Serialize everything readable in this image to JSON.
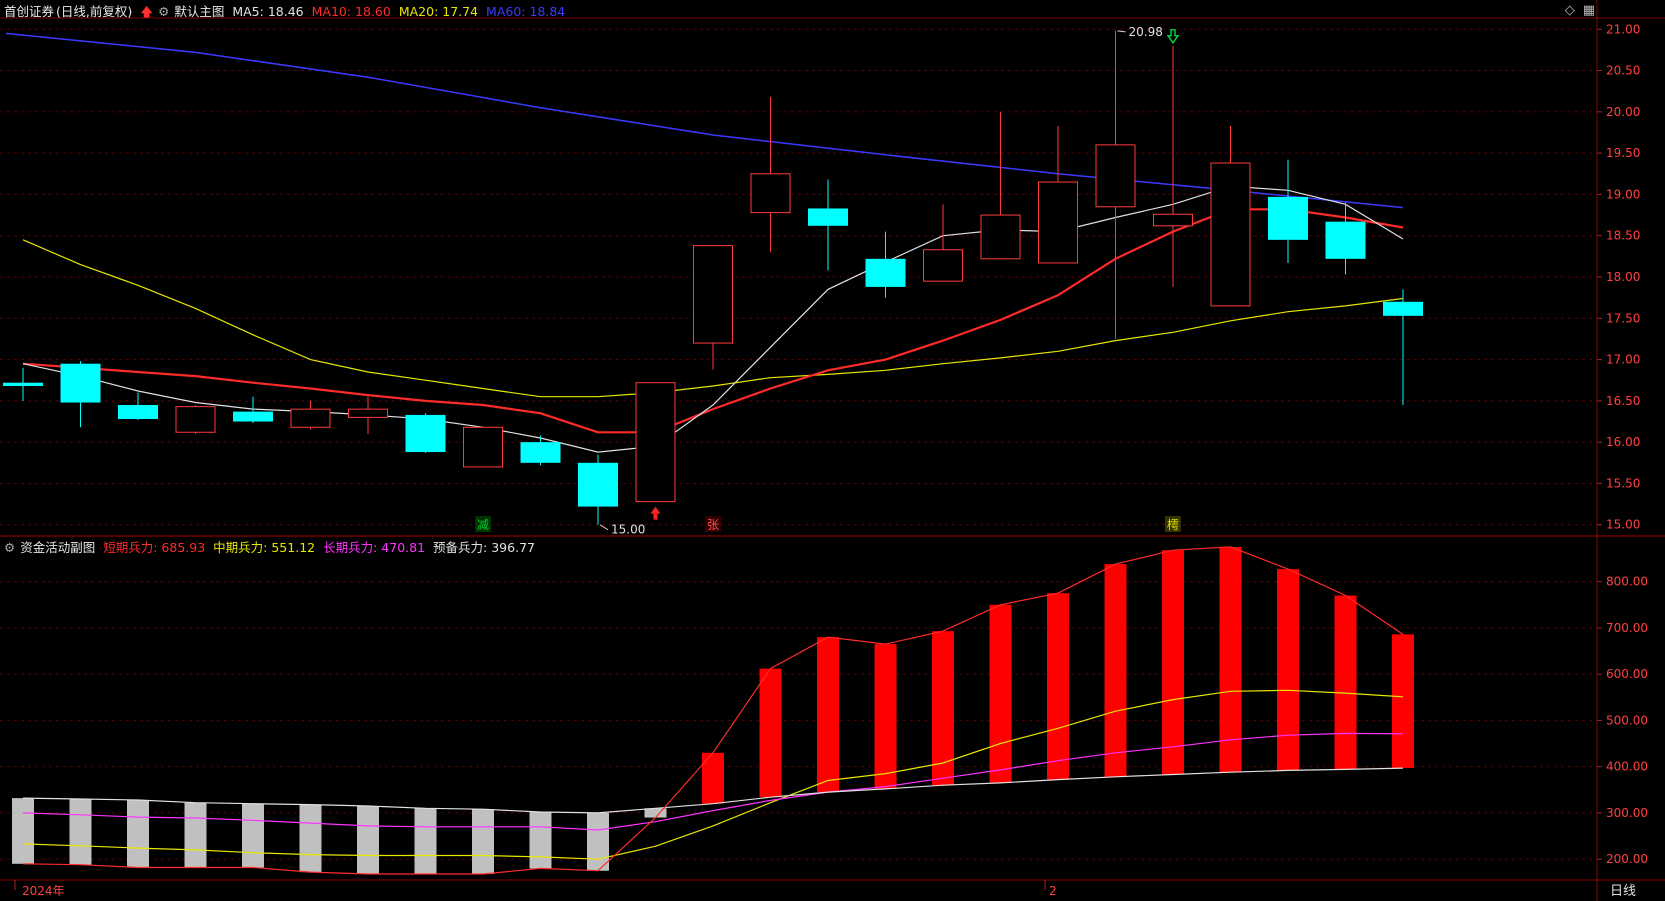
{
  "main_header": {
    "stock_name": "首创证券",
    "period_label": "(日线,前复权)",
    "template_label": "默认主图",
    "ma": [
      {
        "label": "MA5: 18.46",
        "color": "#e0e0e0"
      },
      {
        "label": "MA10: 18.60",
        "color": "#ff2a2a"
      },
      {
        "label": "MA20: 17.74",
        "color": "#e6e600"
      },
      {
        "label": "MA60: 18.84",
        "color": "#3a3aff"
      }
    ]
  },
  "sub_header": {
    "title": "资金活动副图",
    "items": [
      {
        "label": "短期兵力: 685.93",
        "color": "#ff2a2a"
      },
      {
        "label": "中期兵力: 551.12",
        "color": "#e6e600"
      },
      {
        "label": "长期兵力: 470.81",
        "color": "#ff33ff"
      },
      {
        "label": "预备兵力: 396.77",
        "color": "#e0e0e0"
      }
    ]
  },
  "footer": {
    "year_label": "2024年",
    "month_label": "2",
    "period_button": "日线"
  },
  "colors": {
    "up": "#ff3b3b",
    "down": "#00ffff",
    "bar_red": "#ff0000",
    "bar_gray": "#c0c0c0"
  },
  "chart_data": [
    {
      "type": "candlestick",
      "ylim": [
        14.9,
        21.1
      ],
      "yticks": [
        "21.00",
        "20.50",
        "20.00",
        "19.50",
        "19.00",
        "18.50",
        "18.00",
        "17.50",
        "17.00",
        "16.50",
        "16.00",
        "15.50",
        "15.00"
      ],
      "candles": [
        {
          "o": 16.72,
          "h": 16.9,
          "l": 16.5,
          "c": 16.68
        },
        {
          "o": 16.95,
          "h": 16.98,
          "l": 16.18,
          "c": 16.48
        },
        {
          "o": 16.45,
          "h": 16.6,
          "l": 16.27,
          "c": 16.28
        },
        {
          "o": 16.12,
          "h": 16.45,
          "l": 16.1,
          "c": 16.43
        },
        {
          "o": 16.37,
          "h": 16.55,
          "l": 16.23,
          "c": 16.25
        },
        {
          "o": 16.18,
          "h": 16.5,
          "l": 16.15,
          "c": 16.4
        },
        {
          "o": 16.3,
          "h": 16.55,
          "l": 16.1,
          "c": 16.4
        },
        {
          "o": 16.33,
          "h": 16.35,
          "l": 15.87,
          "c": 15.88
        },
        {
          "o": 15.7,
          "h": 16.18,
          "l": 15.7,
          "c": 16.18
        },
        {
          "o": 16.0,
          "h": 16.08,
          "l": 15.72,
          "c": 15.75
        },
        {
          "o": 15.75,
          "h": 15.85,
          "l": 15.0,
          "c": 15.22
        },
        {
          "o": 15.28,
          "h": 16.72,
          "l": 15.28,
          "c": 16.72
        },
        {
          "o": 17.2,
          "h": 18.38,
          "l": 16.88,
          "c": 18.38
        },
        {
          "o": 18.78,
          "h": 20.18,
          "l": 18.3,
          "c": 19.25
        },
        {
          "o": 18.83,
          "h": 19.18,
          "l": 18.08,
          "c": 18.62
        },
        {
          "o": 18.22,
          "h": 18.55,
          "l": 17.75,
          "c": 17.88
        },
        {
          "o": 17.95,
          "h": 18.88,
          "l": 17.95,
          "c": 18.33
        },
        {
          "o": 18.22,
          "h": 20.0,
          "l": 18.22,
          "c": 18.75
        },
        {
          "o": 18.17,
          "h": 19.83,
          "l": 18.17,
          "c": 19.15
        },
        {
          "o": 18.85,
          "h": 20.98,
          "l": 17.25,
          "c": 19.6
        },
        {
          "o": 18.62,
          "h": 20.8,
          "l": 17.88,
          "c": 18.76
        },
        {
          "o": 17.65,
          "h": 19.83,
          "l": 17.65,
          "c": 19.38
        },
        {
          "o": 18.97,
          "h": 19.42,
          "l": 18.17,
          "c": 18.45
        },
        {
          "o": 18.67,
          "h": 18.9,
          "l": 18.03,
          "c": 18.22
        },
        {
          "o": 17.7,
          "h": 17.85,
          "l": 16.45,
          "c": 17.53
        }
      ],
      "ma5": [
        16.95,
        16.8,
        16.62,
        16.48,
        16.4,
        16.37,
        16.33,
        16.28,
        16.18,
        16.05,
        15.88,
        15.95,
        16.45,
        17.15,
        17.85,
        18.18,
        18.5,
        18.57,
        18.55,
        18.72,
        18.88,
        19.1,
        19.05,
        18.88,
        18.46
      ],
      "ma10": [
        16.95,
        16.9,
        16.85,
        16.8,
        16.72,
        16.65,
        16.57,
        16.5,
        16.45,
        16.35,
        16.12,
        16.12,
        16.4,
        16.65,
        16.87,
        17.0,
        17.23,
        17.48,
        17.78,
        18.22,
        18.55,
        18.82,
        18.82,
        18.72,
        18.6
      ],
      "ma20": [
        18.45,
        18.15,
        17.9,
        17.62,
        17.3,
        17.0,
        16.85,
        16.75,
        16.65,
        16.55,
        16.55,
        16.6,
        16.68,
        16.78,
        16.82,
        16.87,
        16.95,
        17.02,
        17.1,
        17.23,
        17.33,
        17.47,
        17.58,
        17.65,
        17.74
      ],
      "ma60_line": [
        {
          "i": -0.3,
          "v": 20.95
        },
        {
          "i": 3,
          "v": 20.72
        },
        {
          "i": 6,
          "v": 20.42
        },
        {
          "i": 9,
          "v": 20.05
        },
        {
          "i": 12,
          "v": 19.72
        },
        {
          "i": 15,
          "v": 19.48
        },
        {
          "i": 18,
          "v": 19.25
        },
        {
          "i": 21,
          "v": 19.05
        },
        {
          "i": 24,
          "v": 18.84
        }
      ],
      "annotations": [
        {
          "text": "20.98",
          "index": 19,
          "value": 20.98
        },
        {
          "text": "15.00",
          "index": 10,
          "value": 15.0
        }
      ],
      "signals": [
        {
          "type": "up-arrow",
          "index": 11
        },
        {
          "type": "down-arrow",
          "index": 20
        },
        {
          "type": "label",
          "index": 8,
          "text": "减",
          "color": "#00cc33",
          "bg": "#003300"
        },
        {
          "type": "label",
          "index": 12,
          "text": "张",
          "color": "#ff5555",
          "bg": "#330000"
        },
        {
          "type": "label",
          "index": 20,
          "text": "樗",
          "color": "#e6e600",
          "bg": "#333300"
        }
      ]
    },
    {
      "type": "bar",
      "ylim": [
        155,
        890
      ],
      "yticks": [
        "800.00",
        "700.00",
        "600.00",
        "500.00",
        "400.00",
        "300.00",
        "200.00"
      ],
      "bar_color_series": "短期兵力",
      "base_series": "预备兵力",
      "series": [
        {
          "name": "短期兵力",
          "values": [
            190,
            188,
            182,
            182,
            182,
            172,
            168,
            168,
            168,
            180,
            175,
            290,
            430,
            612,
            680,
            665,
            693,
            750,
            775,
            838,
            868,
            875,
            827,
            770,
            686
          ]
        },
        {
          "name": "中期兵力",
          "values": [
            233,
            229,
            224,
            220,
            214,
            210,
            208,
            208,
            208,
            205,
            200,
            228,
            272,
            322,
            370,
            385,
            408,
            450,
            483,
            520,
            545,
            563,
            565,
            559,
            551
          ]
        },
        {
          "name": "长期兵力",
          "values": [
            300,
            296,
            291,
            289,
            284,
            278,
            272,
            270,
            270,
            270,
            263,
            281,
            305,
            327,
            345,
            357,
            375,
            393,
            413,
            430,
            443,
            458,
            468,
            472,
            471
          ]
        },
        {
          "name": "预备兵力",
          "values": [
            332,
            330,
            328,
            322,
            320,
            318,
            315,
            310,
            308,
            302,
            300,
            310,
            320,
            334,
            345,
            352,
            360,
            365,
            372,
            378,
            383,
            388,
            392,
            394,
            397
          ]
        }
      ]
    }
  ]
}
